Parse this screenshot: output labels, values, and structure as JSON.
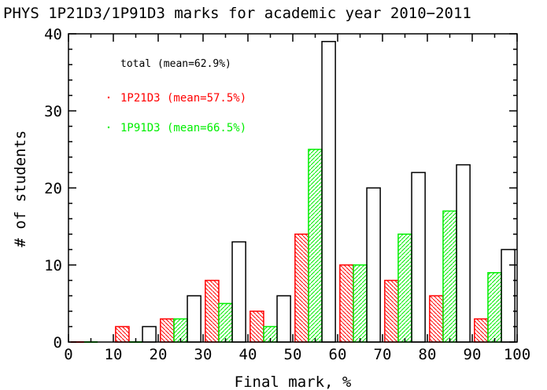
{
  "chart_data": {
    "type": "bar",
    "title": "PHYS 1P21D3/1P91D3 marks for academic year 2010−2011",
    "xlabel": "Final mark, %",
    "ylabel": "# of students",
    "xlim": [
      0,
      100
    ],
    "ylim": [
      0,
      40
    ],
    "xticks": [
      "0",
      "10",
      "20",
      "30",
      "40",
      "50",
      "60",
      "70",
      "80",
      "90",
      "100"
    ],
    "yticks": [
      "0",
      "10",
      "20",
      "30",
      "40"
    ],
    "bins": [
      "0-10",
      "10-20",
      "20-30",
      "30-40",
      "40-50",
      "50-60",
      "60-70",
      "70-80",
      "80-90",
      "90-100"
    ],
    "series": [
      {
        "name": "1P21D3",
        "legend": "1P21D3 (mean=57.5%)",
        "color": "#ff0000",
        "values": [
          0,
          2,
          3,
          8,
          4,
          14,
          10,
          8,
          6,
          3
        ]
      },
      {
        "name": "1P91D3",
        "legend": "1P91D3 (mean=66.5%)",
        "color": "#00ee00",
        "values": [
          0,
          0,
          3,
          5,
          2,
          25,
          10,
          14,
          17,
          9
        ]
      },
      {
        "name": "total",
        "legend": "total (mean=62.9%)",
        "color": "#000000",
        "values": [
          0,
          2,
          6,
          13,
          6,
          39,
          20,
          22,
          23,
          12
        ]
      }
    ],
    "legend_placement": "top-left",
    "grid": false
  }
}
